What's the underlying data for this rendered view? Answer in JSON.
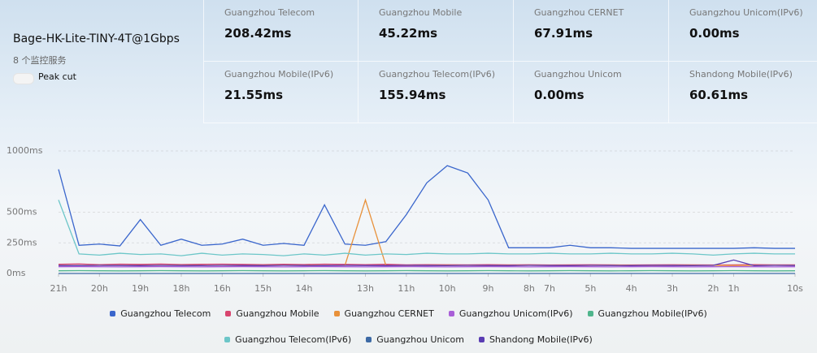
{
  "header": {
    "title": "Bage-HK-Lite-TINY-4T@1Gbps",
    "subtitle": "8 个监控服务",
    "toggle_label": "Peak cut"
  },
  "stats": [
    {
      "name": "Guangzhou Telecom",
      "value": "208.42ms"
    },
    {
      "name": "Guangzhou Mobile",
      "value": "45.22ms"
    },
    {
      "name": "Guangzhou CERNET",
      "value": "67.91ms"
    },
    {
      "name": "Guangzhou Unicom(IPv6)",
      "value": "0.00ms"
    },
    {
      "name": "Guangzhou Mobile(IPv6)",
      "value": "21.55ms"
    },
    {
      "name": "Guangzhou Telecom(IPv6)",
      "value": "155.94ms"
    },
    {
      "name": "Guangzhou Unicom",
      "value": "0.00ms"
    },
    {
      "name": "Shandong Mobile(IPv6)",
      "value": "60.61ms"
    }
  ],
  "chart_data": {
    "type": "line",
    "grid": true,
    "x": [
      0,
      1,
      2,
      3,
      4,
      5,
      6,
      7,
      8,
      9,
      10,
      11,
      12,
      13,
      14,
      15,
      16,
      17,
      18,
      19,
      20,
      21,
      22,
      23,
      24,
      25,
      26,
      27,
      28,
      29,
      30,
      31,
      32,
      33,
      34,
      35,
      36
    ],
    "xlim": [
      0,
      36
    ],
    "xticks": [
      {
        "value": 0,
        "label": "21h"
      },
      {
        "value": 2,
        "label": "20h"
      },
      {
        "value": 4,
        "label": "19h"
      },
      {
        "value": 6,
        "label": "18h"
      },
      {
        "value": 8,
        "label": "16h"
      },
      {
        "value": 10,
        "label": "15h"
      },
      {
        "value": 12,
        "label": "14h"
      },
      {
        "value": 15,
        "label": "13h"
      },
      {
        "value": 17,
        "label": "11h"
      },
      {
        "value": 19,
        "label": "10h"
      },
      {
        "value": 21,
        "label": "9h"
      },
      {
        "value": 23,
        "label": "8h"
      },
      {
        "value": 24,
        "label": "7h"
      },
      {
        "value": 26,
        "label": "5h"
      },
      {
        "value": 28,
        "label": "4h"
      },
      {
        "value": 30,
        "label": "3h"
      },
      {
        "value": 32,
        "label": "2h"
      },
      {
        "value": 33,
        "label": "1h"
      },
      {
        "value": 36,
        "label": "10s"
      }
    ],
    "ylim": [
      0,
      1000
    ],
    "yticks": [
      {
        "value": 0,
        "label": "0ms"
      },
      {
        "value": 250,
        "label": "250ms"
      },
      {
        "value": 500,
        "label": "500ms"
      },
      {
        "value": 1000,
        "label": "1000ms"
      }
    ],
    "series": [
      {
        "name": "Guangzhou Telecom",
        "color": "#3a66cc",
        "values": [
          850,
          230,
          240,
          225,
          440,
          230,
          280,
          230,
          240,
          280,
          230,
          245,
          230,
          560,
          240,
          230,
          260,
          480,
          740,
          880,
          820,
          600,
          210,
          210,
          210,
          230,
          210,
          210,
          205,
          205,
          205,
          205,
          205,
          205,
          210,
          205,
          205
        ]
      },
      {
        "name": "Guangzhou Mobile",
        "color": "#d8456f",
        "values": [
          75,
          78,
          72,
          76,
          74,
          77,
          73,
          75,
          76,
          74,
          72,
          75,
          73,
          76,
          74,
          72,
          75,
          70,
          72,
          71,
          70,
          72,
          70,
          71,
          69,
          70,
          71,
          70,
          69,
          70,
          71,
          70,
          69,
          70,
          72,
          70,
          70
        ]
      },
      {
        "name": "Guangzhou CERNET",
        "color": "#e8913a",
        "values": [
          66,
          65,
          67,
          66,
          65,
          66,
          67,
          65,
          66,
          65,
          66,
          67,
          66,
          65,
          66,
          600,
          66,
          65,
          66,
          67,
          66,
          65,
          66,
          67,
          66,
          65,
          66,
          67,
          66,
          65,
          66,
          67,
          66,
          65,
          66,
          67,
          66
        ]
      },
      {
        "name": "Guangzhou Unicom(IPv6)",
        "color": "#a95fd8",
        "values": [
          55,
          56,
          55,
          54,
          55,
          56,
          55,
          54,
          55,
          56,
          55,
          54,
          55,
          56,
          55,
          54,
          55,
          56,
          55,
          54,
          55,
          56,
          55,
          54,
          55,
          56,
          55,
          54,
          55,
          56,
          55,
          54,
          55,
          56,
          55,
          54,
          55
        ]
      },
      {
        "name": "Guangzhou Mobile(IPv6)",
        "color": "#4fb58c",
        "values": [
          22,
          23,
          22,
          21,
          22,
          23,
          22,
          21,
          22,
          23,
          22,
          21,
          22,
          23,
          22,
          21,
          22,
          23,
          22,
          21,
          22,
          23,
          22,
          21,
          22,
          23,
          22,
          21,
          22,
          23,
          22,
          21,
          22,
          23,
          22,
          21,
          22
        ]
      },
      {
        "name": "Guangzhou Telecom(IPv6)",
        "color": "#6cc6c8",
        "values": [
          600,
          160,
          150,
          165,
          155,
          160,
          145,
          165,
          150,
          160,
          155,
          145,
          160,
          150,
          165,
          150,
          160,
          155,
          165,
          160,
          160,
          165,
          160,
          160,
          165,
          160,
          160,
          165,
          160,
          160,
          165,
          160,
          150,
          160,
          165,
          160,
          160
        ]
      },
      {
        "name": "Guangzhou Unicom",
        "color": "#3d6aa5",
        "values": [
          0,
          0,
          0,
          0,
          0,
          0,
          0,
          0,
          0,
          0,
          0,
          0,
          0,
          0,
          0,
          0,
          0,
          0,
          0,
          0,
          0,
          0,
          0,
          0,
          0,
          0,
          0,
          0,
          0,
          0,
          0,
          0,
          0,
          0,
          0,
          0,
          0
        ]
      },
      {
        "name": "Shandong Mobile(IPv6)",
        "color": "#5a3db3",
        "values": [
          65,
          64,
          66,
          65,
          64,
          66,
          65,
          64,
          66,
          65,
          64,
          66,
          65,
          64,
          66,
          65,
          64,
          66,
          65,
          64,
          66,
          65,
          64,
          66,
          65,
          64,
          66,
          65,
          64,
          66,
          65,
          64,
          66,
          110,
          64,
          66,
          65
        ]
      }
    ]
  }
}
